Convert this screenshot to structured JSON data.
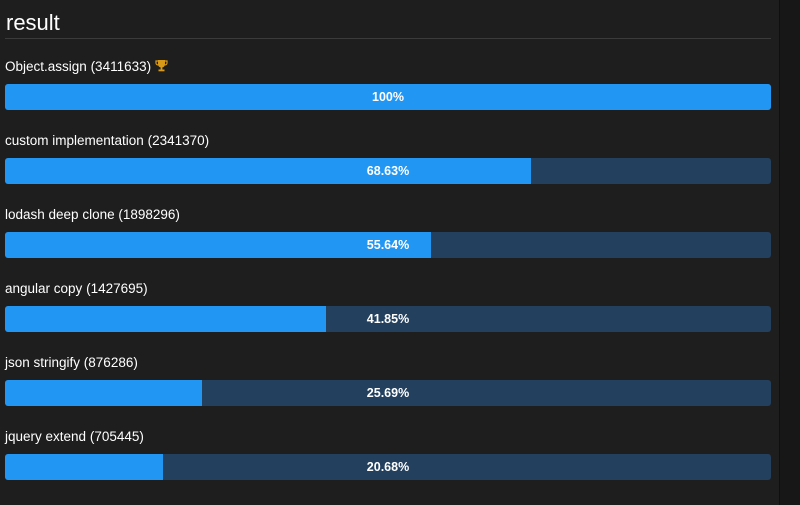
{
  "panel": {
    "heading": "result"
  },
  "results": [
    {
      "name": "Object.assign",
      "ops": "(3411633)",
      "percent_label": "100%",
      "fraction": 1.0,
      "winner": true,
      "icon": "trophy-icon"
    },
    {
      "name": "custom implementation",
      "ops": "(2341370)",
      "percent_label": "68.63%",
      "fraction": 0.6863,
      "winner": false
    },
    {
      "name": "lodash deep clone",
      "ops": "(1898296)",
      "percent_label": "55.64%",
      "fraction": 0.5564,
      "winner": false
    },
    {
      "name": "angular copy",
      "ops": "(1427695)",
      "percent_label": "41.85%",
      "fraction": 0.4185,
      "winner": false
    },
    {
      "name": "json stringify",
      "ops": "(876286)",
      "percent_label": "25.69%",
      "fraction": 0.2569,
      "winner": false
    },
    {
      "name": "jquery extend",
      "ops": "(705445)",
      "percent_label": "20.68%",
      "fraction": 0.2068,
      "winner": false
    }
  ],
  "colors": {
    "background": "#1e1e1e",
    "bar_fill": "#2196f3",
    "bar_track": "#23405e",
    "trophy": "#d99a1a"
  }
}
